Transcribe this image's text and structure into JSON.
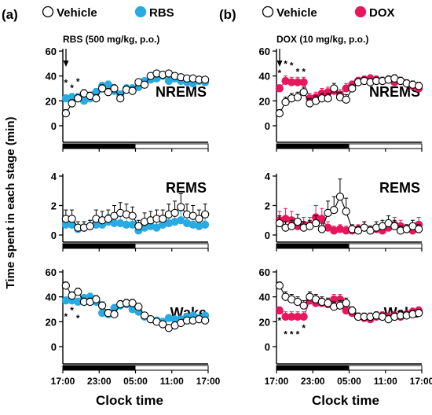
{
  "figure": {
    "ylabel": "Time spent in each stage (min)",
    "xlabel": "Clock time",
    "x_ticks": [
      "17:00",
      "23:00",
      "05:00",
      "11:00",
      "17:00"
    ],
    "significance_mark": "*"
  },
  "colors": {
    "vehicle_fill": "#ffffff",
    "vehicle_stroke": "#000000",
    "rbs": "#29abe2",
    "dox": "#e8175d",
    "dark_bar": "#000000"
  },
  "panels": [
    {
      "letter": "(a)",
      "legend": [
        {
          "name": "Vehicle",
          "style": "open"
        },
        {
          "name": "RBS",
          "style": "rbs"
        }
      ],
      "annotation": "RBS (500 mg/kg, p.o.)"
    },
    {
      "letter": "(b)",
      "legend": [
        {
          "name": "Vehicle",
          "style": "open"
        },
        {
          "name": "DOX",
          "style": "dox"
        }
      ],
      "annotation": "DOX (10 mg/kg, p.o.)"
    }
  ],
  "chart_data": [
    {
      "type": "line",
      "panel": "(a)",
      "stage": "NREMS",
      "ylim": [
        0,
        60
      ],
      "yticks": [
        0,
        20,
        40,
        60
      ],
      "xlim": [
        0,
        24
      ],
      "x": [
        0.5,
        1.5,
        2.5,
        3.5,
        4.5,
        5.5,
        6.5,
        7.5,
        8.5,
        9.5,
        10.5,
        11.5,
        12.5,
        13.5,
        14.5,
        15.5,
        16.5,
        17.5,
        18.5,
        19.5,
        20.5,
        21.5,
        22.5,
        23.5
      ],
      "dark_period_hours": [
        0,
        12
      ],
      "series": [
        {
          "name": "Vehicle",
          "values": [
            10,
            18,
            22,
            26,
            24,
            22,
            30,
            27,
            30,
            22,
            29,
            28,
            35,
            33,
            40,
            42,
            41,
            42,
            40,
            39,
            38,
            38,
            37,
            37
          ],
          "err": [
            3,
            3,
            3,
            3,
            3,
            3,
            3,
            3,
            3,
            3,
            3,
            3,
            2,
            2,
            2,
            2,
            2,
            2,
            2,
            2,
            2,
            2,
            2,
            2
          ]
        },
        {
          "name": "RBS",
          "values": [
            22,
            23,
            23,
            20,
            22,
            27,
            32,
            33,
            28,
            25,
            30,
            30,
            31,
            36,
            37,
            38,
            40,
            36,
            38,
            36,
            35,
            34,
            36,
            35
          ],
          "err": [
            3,
            3,
            3,
            3,
            3,
            3,
            3,
            3,
            3,
            3,
            3,
            3,
            2,
            2,
            2,
            2,
            2,
            2,
            2,
            2,
            2,
            2,
            2,
            2
          ]
        }
      ],
      "significance_x": [
        0.5,
        1.5,
        2.5
      ],
      "significance_rows": [
        2,
        1,
        2
      ]
    },
    {
      "type": "line",
      "panel": "(a)",
      "stage": "REMS",
      "ylim": [
        0,
        4
      ],
      "yticks": [
        0,
        2,
        4
      ],
      "xlim": [
        0,
        24
      ],
      "x": [
        0.5,
        1.5,
        2.5,
        3.5,
        4.5,
        5.5,
        6.5,
        7.5,
        8.5,
        9.5,
        10.5,
        11.5,
        12.5,
        13.5,
        14.5,
        15.5,
        16.5,
        17.5,
        18.5,
        19.5,
        20.5,
        21.5,
        22.5,
        23.5
      ],
      "series": [
        {
          "name": "Vehicle",
          "values": [
            1.1,
            1.1,
            0.5,
            0.5,
            0.6,
            1.1,
            1.0,
            1.1,
            1.3,
            1.5,
            1.4,
            1.3,
            0.6,
            0.9,
            1.0,
            1.1,
            1.1,
            1.4,
            1.5,
            1.9,
            1.4,
            1.3,
            1.1,
            1.4
          ],
          "err": [
            0.6,
            0.6,
            0.4,
            0.4,
            0.4,
            0.6,
            0.6,
            0.6,
            0.7,
            0.7,
            0.7,
            0.6,
            0.4,
            0.6,
            0.6,
            0.6,
            0.6,
            0.7,
            0.8,
            0.9,
            0.7,
            0.7,
            0.6,
            0.7
          ]
        },
        {
          "name": "RBS",
          "values": [
            0.7,
            0.7,
            0.4,
            0.5,
            0.6,
            0.7,
            0.7,
            0.9,
            0.8,
            0.8,
            0.7,
            0.7,
            0.3,
            0.5,
            0.6,
            0.5,
            0.7,
            0.8,
            0.9,
            1.0,
            0.8,
            0.7,
            0.6,
            0.7
          ],
          "err": [
            0.5,
            0.5,
            0.3,
            0.4,
            0.4,
            0.5,
            0.5,
            0.5,
            0.5,
            0.5,
            0.5,
            0.5,
            0.3,
            0.4,
            0.4,
            0.4,
            0.5,
            0.5,
            0.5,
            0.6,
            0.5,
            0.5,
            0.4,
            0.5
          ]
        }
      ]
    },
    {
      "type": "line",
      "panel": "(a)",
      "stage": "Wake",
      "ylim": [
        0,
        60
      ],
      "yticks": [
        0,
        20,
        40,
        60
      ],
      "xlim": [
        0,
        24
      ],
      "x": [
        0.5,
        1.5,
        2.5,
        3.5,
        4.5,
        5.5,
        6.5,
        7.5,
        8.5,
        9.5,
        10.5,
        11.5,
        12.5,
        13.5,
        14.5,
        15.5,
        16.5,
        17.5,
        18.5,
        19.5,
        20.5,
        21.5,
        22.5,
        23.5
      ],
      "series": [
        {
          "name": "Vehicle",
          "values": [
            49,
            41,
            44,
            36,
            36,
            38,
            33,
            27,
            26,
            34,
            35,
            35,
            32,
            25,
            22,
            20,
            18,
            15,
            17,
            19,
            21,
            21,
            22,
            21
          ],
          "err": [
            3,
            3,
            3,
            3,
            3,
            3,
            3,
            3,
            3,
            3,
            3,
            3,
            2,
            2,
            2,
            2,
            2,
            2,
            2,
            2,
            2,
            2,
            2,
            2
          ]
        },
        {
          "name": "RBS",
          "values": [
            37,
            37,
            36,
            39,
            40,
            36,
            27,
            26,
            31,
            33,
            34,
            30,
            28,
            24,
            22,
            21,
            20,
            23,
            22,
            22,
            24,
            25,
            23,
            25
          ],
          "err": [
            3,
            3,
            3,
            3,
            3,
            3,
            3,
            3,
            3,
            3,
            3,
            3,
            2,
            2,
            2,
            2,
            2,
            2,
            2,
            2,
            2,
            2,
            2,
            2
          ]
        }
      ],
      "significance_x": [
        0.5,
        1.5,
        2.5
      ],
      "significance_rows": [
        2,
        1,
        2
      ]
    },
    {
      "type": "line",
      "panel": "(b)",
      "stage": "NREMS",
      "ylim": [
        0,
        60
      ],
      "yticks": [
        0,
        20,
        40,
        60
      ],
      "xlim": [
        0,
        24
      ],
      "x": [
        0.5,
        1.5,
        2.5,
        3.5,
        4.5,
        5.5,
        6.5,
        7.5,
        8.5,
        9.5,
        10.5,
        11.5,
        12.5,
        13.5,
        14.5,
        15.5,
        16.5,
        17.5,
        18.5,
        19.5,
        20.5,
        21.5,
        22.5,
        23.5
      ],
      "dark_period_hours": [
        0,
        12
      ],
      "series": [
        {
          "name": "Vehicle",
          "values": [
            10,
            19,
            22,
            23,
            27,
            18,
            20,
            22,
            22,
            30,
            23,
            21,
            30,
            35,
            36,
            35,
            36,
            36,
            37,
            38,
            36,
            34,
            33,
            32
          ],
          "err": [
            3,
            4,
            4,
            4,
            4,
            4,
            4,
            4,
            4,
            4,
            4,
            4,
            3,
            3,
            3,
            3,
            3,
            3,
            3,
            3,
            3,
            3,
            3,
            3
          ]
        },
        {
          "name": "DOX",
          "values": [
            30,
            36,
            35,
            35,
            35,
            22,
            23,
            26,
            27,
            28,
            25,
            30,
            33,
            36,
            37,
            38,
            37,
            36,
            37,
            35,
            36,
            34,
            32,
            30
          ],
          "err": [
            3,
            4,
            4,
            4,
            4,
            4,
            4,
            4,
            4,
            4,
            4,
            4,
            3,
            3,
            3,
            3,
            3,
            3,
            3,
            3,
            3,
            3,
            3,
            3
          ]
        }
      ],
      "significance_x": [
        0.5,
        1.5,
        2.5,
        3.5,
        4.5
      ],
      "significance_rows": [
        2,
        2,
        2,
        1,
        1
      ]
    },
    {
      "type": "line",
      "panel": "(b)",
      "stage": "REMS",
      "ylim": [
        0,
        4
      ],
      "yticks": [
        0,
        2,
        4
      ],
      "xlim": [
        0,
        24
      ],
      "x": [
        0.5,
        1.5,
        2.5,
        3.5,
        4.5,
        5.5,
        6.5,
        7.5,
        8.5,
        9.5,
        10.5,
        11.5,
        12.5,
        13.5,
        14.5,
        15.5,
        16.5,
        17.5,
        18.5,
        19.5,
        20.5,
        21.5,
        22.5,
        23.5
      ],
      "series": [
        {
          "name": "Vehicle",
          "values": [
            0.8,
            0.5,
            0.6,
            0.9,
            0.5,
            0.6,
            0.8,
            0.4,
            1.5,
            1.7,
            2.6,
            1.6,
            0.4,
            0.3,
            0.5,
            0.3,
            0.5,
            0.6,
            0.8,
            0.6,
            0.3,
            0.4,
            0.6,
            0.4
          ],
          "err": [
            0.5,
            0.4,
            0.4,
            0.5,
            0.4,
            0.4,
            0.5,
            0.4,
            0.8,
            0.9,
            1.2,
            0.9,
            0.3,
            0.3,
            0.4,
            0.3,
            0.4,
            0.4,
            0.5,
            0.4,
            0.3,
            0.3,
            0.4,
            0.3
          ]
        },
        {
          "name": "DOX",
          "values": [
            1.0,
            1.1,
            1.0,
            0.6,
            0.7,
            0.7,
            1.2,
            1.1,
            0.5,
            0.3,
            0.4,
            0.3,
            0.3,
            0.4,
            0.5,
            0.3,
            0.4,
            0.3,
            0.5,
            0.7,
            0.6,
            0.4,
            0.3,
            0.7
          ],
          "err": [
            0.6,
            0.7,
            0.6,
            0.4,
            0.5,
            0.5,
            0.8,
            0.7,
            0.4,
            0.3,
            0.3,
            0.3,
            0.3,
            0.3,
            0.4,
            0.3,
            0.3,
            0.3,
            0.4,
            0.5,
            0.4,
            0.3,
            0.3,
            0.5
          ]
        }
      ]
    },
    {
      "type": "line",
      "panel": "(b)",
      "stage": "Wake",
      "ylim": [
        0,
        60
      ],
      "yticks": [
        0,
        20,
        40,
        60
      ],
      "xlim": [
        0,
        24
      ],
      "x": [
        0.5,
        1.5,
        2.5,
        3.5,
        4.5,
        5.5,
        6.5,
        7.5,
        8.5,
        9.5,
        10.5,
        11.5,
        12.5,
        13.5,
        14.5,
        15.5,
        16.5,
        17.5,
        18.5,
        19.5,
        20.5,
        21.5,
        22.5,
        23.5
      ],
      "series": [
        {
          "name": "Vehicle",
          "values": [
            49,
            40,
            38,
            36,
            33,
            40,
            38,
            36,
            35,
            32,
            33,
            35,
            29,
            24,
            24,
            24,
            25,
            24,
            22,
            24,
            25,
            25,
            26,
            27
          ],
          "err": [
            3,
            4,
            4,
            4,
            4,
            4,
            4,
            4,
            4,
            4,
            4,
            4,
            3,
            3,
            3,
            3,
            3,
            3,
            3,
            3,
            3,
            3,
            3,
            3
          ]
        },
        {
          "name": "DOX",
          "values": [
            29,
            24,
            24,
            24,
            24,
            37,
            35,
            35,
            34,
            38,
            38,
            29,
            27,
            24,
            23,
            22,
            24,
            25,
            24,
            25,
            24,
            26,
            28,
            29
          ],
          "err": [
            3,
            4,
            4,
            4,
            4,
            4,
            4,
            4,
            4,
            4,
            4,
            4,
            3,
            3,
            3,
            3,
            3,
            3,
            3,
            3,
            3,
            3,
            3,
            3
          ]
        }
      ],
      "significance_x": [
        0.5,
        1.5,
        2.5,
        3.5,
        4.5
      ],
      "significance_rows": [
        1,
        2,
        2,
        2,
        1
      ]
    }
  ]
}
